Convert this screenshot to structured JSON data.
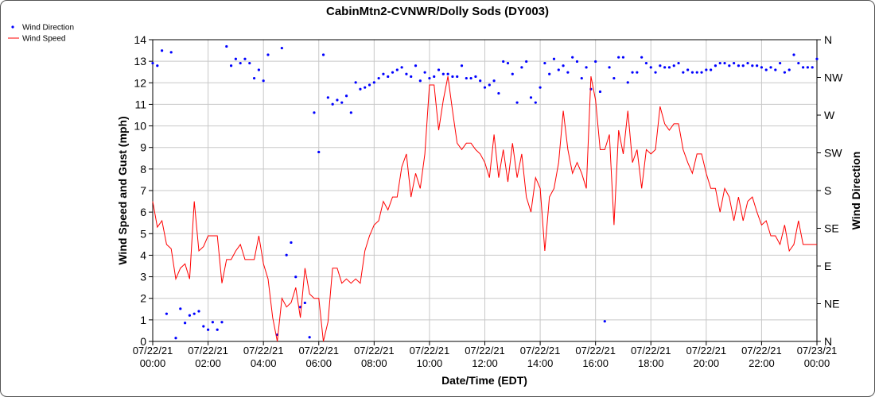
{
  "chart_data": {
    "type": "line",
    "title": "CabinMtn2-CVNWR/Dolly Sods (DY003)",
    "x_label": "Date/Time (EDT)",
    "y_label": "Wind Speed and Gust (mph)",
    "y2_label": "Wind Direction",
    "legend": "top-left",
    "grid": true,
    "x": [
      "07/22/21 00:00",
      "07/22/21 00:10",
      "07/22/21 00:20",
      "07/22/21 00:30",
      "07/22/21 00:40",
      "07/22/21 00:50",
      "07/22/21 01:00",
      "07/22/21 01:10",
      "07/22/21 01:20",
      "07/22/21 01:30",
      "07/22/21 01:40",
      "07/22/21 01:50",
      "07/22/21 02:00",
      "07/22/21 02:10",
      "07/22/21 02:20",
      "07/22/21 02:30",
      "07/22/21 02:40",
      "07/22/21 02:50",
      "07/22/21 03:00",
      "07/22/21 03:10",
      "07/22/21 03:20",
      "07/22/21 03:30",
      "07/22/21 03:40",
      "07/22/21 03:50",
      "07/22/21 04:00",
      "07/22/21 04:10",
      "07/22/21 04:20",
      "07/22/21 04:30",
      "07/22/21 04:40",
      "07/22/21 04:50",
      "07/22/21 05:00",
      "07/22/21 05:10",
      "07/22/21 05:20",
      "07/22/21 05:30",
      "07/22/21 05:40",
      "07/22/21 05:50",
      "07/22/21 06:00",
      "07/22/21 06:10",
      "07/22/21 06:20",
      "07/22/21 06:30",
      "07/22/21 06:40",
      "07/22/21 06:50",
      "07/22/21 07:00",
      "07/22/21 07:10",
      "07/22/21 07:20",
      "07/22/21 07:30",
      "07/22/21 07:40",
      "07/22/21 07:50",
      "07/22/21 08:00",
      "07/22/21 08:10",
      "07/22/21 08:20",
      "07/22/21 08:30",
      "07/22/21 08:40",
      "07/22/21 08:50",
      "07/22/21 09:00",
      "07/22/21 09:10",
      "07/22/21 09:20",
      "07/22/21 09:30",
      "07/22/21 09:40",
      "07/22/21 09:50",
      "07/22/21 10:00",
      "07/22/21 10:10",
      "07/22/21 10:20",
      "07/22/21 10:30",
      "07/22/21 10:40",
      "07/22/21 10:50",
      "07/22/21 11:00",
      "07/22/21 11:10",
      "07/22/21 11:20",
      "07/22/21 11:30",
      "07/22/21 11:40",
      "07/22/21 11:50",
      "07/22/21 12:00",
      "07/22/21 12:10",
      "07/22/21 12:20",
      "07/22/21 12:30",
      "07/22/21 12:40",
      "07/22/21 12:50",
      "07/22/21 13:00",
      "07/22/21 13:10",
      "07/22/21 13:20",
      "07/22/21 13:30",
      "07/22/21 13:40",
      "07/22/21 13:50",
      "07/22/21 14:00",
      "07/22/21 14:10",
      "07/22/21 14:20",
      "07/22/21 14:30",
      "07/22/21 14:40",
      "07/22/21 14:50",
      "07/22/21 15:00",
      "07/22/21 15:10",
      "07/22/21 15:20",
      "07/22/21 15:30",
      "07/22/21 15:40",
      "07/22/21 15:50",
      "07/22/21 16:00",
      "07/22/21 16:10",
      "07/22/21 16:20",
      "07/22/21 16:30",
      "07/22/21 16:40",
      "07/22/21 16:50",
      "07/22/21 17:00",
      "07/22/21 17:10",
      "07/22/21 17:20",
      "07/22/21 17:30",
      "07/22/21 17:40",
      "07/22/21 17:50",
      "07/22/21 18:00",
      "07/22/21 18:10",
      "07/22/21 18:20",
      "07/22/21 18:30",
      "07/22/21 18:40",
      "07/22/21 18:50",
      "07/22/21 19:00",
      "07/22/21 19:10",
      "07/22/21 19:20",
      "07/22/21 19:30",
      "07/22/21 19:40",
      "07/22/21 19:50",
      "07/22/21 20:00",
      "07/22/21 20:10",
      "07/22/21 20:20",
      "07/22/21 20:30",
      "07/22/21 20:40",
      "07/22/21 20:50",
      "07/22/21 21:00",
      "07/22/21 21:10",
      "07/22/21 21:20",
      "07/22/21 21:30",
      "07/22/21 21:40",
      "07/22/21 21:50",
      "07/22/21 22:00",
      "07/22/21 22:10",
      "07/22/21 22:20",
      "07/22/21 22:30",
      "07/22/21 22:40",
      "07/22/21 22:50",
      "07/22/21 23:00",
      "07/22/21 23:10",
      "07/22/21 23:20",
      "07/22/21 23:30",
      "07/22/21 23:40",
      "07/22/21 23:50",
      "07/23/21 00:00"
    ],
    "series": [
      {
        "name": "Wind Direction",
        "color": "#0000ff",
        "axis": "y2",
        "marker": "dot",
        "values": [
          332,
          329,
          347,
          33,
          345,
          4,
          39,
          22,
          31,
          33,
          36,
          18,
          14,
          23,
          14,
          23,
          352,
          329,
          337,
          332,
          337,
          332,
          314,
          324,
          311,
          342,
          null,
          8,
          350,
          103,
          118,
          77,
          41,
          46,
          5,
          273,
          226,
          342,
          291,
          283,
          288,
          285,
          293,
          273,
          309,
          301,
          303,
          306,
          309,
          314,
          319,
          316,
          321,
          324,
          327,
          319,
          316,
          329,
          311,
          321,
          314,
          316,
          324,
          319,
          319,
          316,
          316,
          329,
          314,
          314,
          316,
          311,
          303,
          306,
          311,
          296,
          334,
          332,
          319,
          285,
          327,
          334,
          291,
          285,
          303,
          332,
          319,
          337,
          324,
          329,
          321,
          339,
          334,
          314,
          327,
          301,
          334,
          298,
          24,
          327,
          314,
          339,
          339,
          309,
          321,
          321,
          339,
          332,
          327,
          321,
          329,
          327,
          327,
          329,
          332,
          321,
          324,
          321,
          321,
          321,
          324,
          324,
          329,
          332,
          332,
          329,
          332,
          329,
          329,
          332,
          329,
          329,
          327,
          324,
          327,
          324,
          332,
          321,
          324,
          342,
          332,
          327,
          327,
          327,
          337
        ]
      },
      {
        "name": "Wind Speed",
        "color": "#ff0000",
        "values": [
          6.5,
          5.3,
          5.6,
          4.5,
          4.3,
          2.9,
          3.4,
          3.6,
          2.9,
          6.5,
          4.2,
          4.4,
          4.9,
          4.9,
          4.9,
          2.7,
          3.8,
          3.8,
          4.2,
          4.5,
          3.8,
          3.8,
          3.8,
          4.9,
          3.6,
          2.9,
          1.1,
          0,
          2.0,
          1.6,
          1.8,
          2.5,
          1.1,
          3.4,
          2.2,
          2.0,
          2.0,
          0,
          0.9,
          3.4,
          3.4,
          2.7,
          2.9,
          2.7,
          2.9,
          2.7,
          4.2,
          4.9,
          5.4,
          5.6,
          6.5,
          6.1,
          6.7,
          6.7,
          8.1,
          8.7,
          6.7,
          7.8,
          7.1,
          8.7,
          11.9,
          11.9,
          9.8,
          11.2,
          12.3,
          10.7,
          9.2,
          8.9,
          9.2,
          9.2,
          8.9,
          8.7,
          8.3,
          7.6,
          9.6,
          7.6,
          8.9,
          7.4,
          9.2,
          7.6,
          8.7,
          6.7,
          6.0,
          7.6,
          7.1,
          4.2,
          6.7,
          7.1,
          8.3,
          10.7,
          8.9,
          7.8,
          8.3,
          7.8,
          7.1,
          12.3,
          11.2,
          8.9,
          8.9,
          9.6,
          5.4,
          9.8,
          8.7,
          10.7,
          8.3,
          8.9,
          7.1,
          8.9,
          8.7,
          8.9,
          10.9,
          10.1,
          9.8,
          10.1,
          10.1,
          8.9,
          8.3,
          7.8,
          8.7,
          8.7,
          7.8,
          7.1,
          7.1,
          6.0,
          7.1,
          6.7,
          5.6,
          6.7,
          5.6,
          6.5,
          6.7,
          6.0,
          5.4,
          5.6,
          4.9,
          4.9,
          4.5,
          5.4,
          4.2,
          4.5,
          5.6,
          4.5,
          4.5,
          4.5,
          4.5
        ]
      }
    ],
    "xlim": [
      "07/22/21 00:00",
      "07/23/21 00:00"
    ],
    "xticks": [
      "07/22/21 00:00",
      "07/22/21 02:00",
      "07/22/21 04:00",
      "07/22/21 06:00",
      "07/22/21 08:00",
      "07/22/21 10:00",
      "07/22/21 12:00",
      "07/22/21 14:00",
      "07/22/21 16:00",
      "07/22/21 18:00",
      "07/22/21 20:00",
      "07/22/21 22:00",
      "07/23/21 00:00"
    ],
    "ylim": [
      0,
      14
    ],
    "yticks": [
      0,
      1,
      2,
      3,
      4,
      5,
      6,
      7,
      8,
      9,
      10,
      11,
      12,
      13,
      14
    ],
    "y2lim": [
      0,
      360
    ],
    "y2ticks": [
      {
        "value": 0,
        "label": "N"
      },
      {
        "value": 45,
        "label": "NE"
      },
      {
        "value": 90,
        "label": "E"
      },
      {
        "value": 135,
        "label": "SE"
      },
      {
        "value": 180,
        "label": "S"
      },
      {
        "value": 225,
        "label": "SW"
      },
      {
        "value": 270,
        "label": "W"
      },
      {
        "value": 315,
        "label": "NW"
      },
      {
        "value": 360,
        "label": "N"
      }
    ]
  }
}
